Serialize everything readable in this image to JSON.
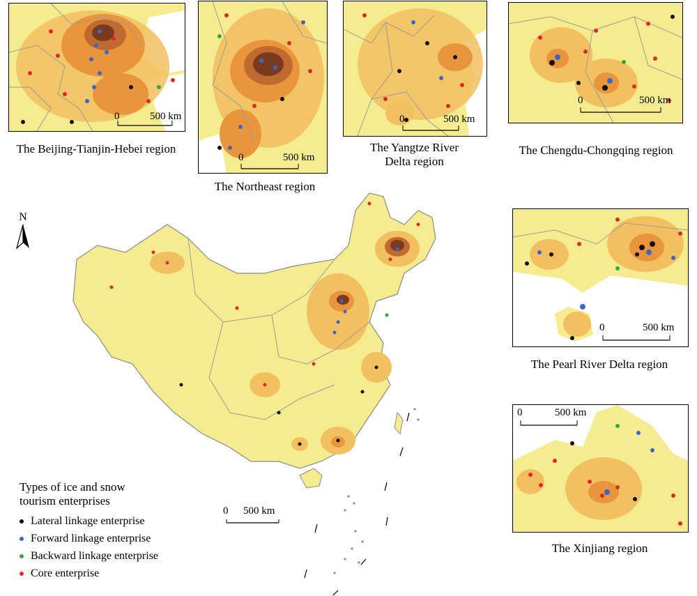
{
  "insets": {
    "bth": {
      "caption": "The Beijing-Tianjin-Hebei region"
    },
    "ne": {
      "caption": "The Northeast region"
    },
    "yrd": {
      "caption_line1": "The Yangtze River",
      "caption_line2": "Delta region"
    },
    "cc": {
      "caption": "The Chengdu-Chongqing region"
    },
    "prd": {
      "caption": "The Pearl River Delta region"
    },
    "xj": {
      "caption": "The Xinjiang region"
    }
  },
  "scale_bar": {
    "zero": "0",
    "distance": "500 km"
  },
  "north_arrow": {
    "label": "N"
  },
  "legend": {
    "title_line1": "Types of ice and snow",
    "title_line2": "tourism enterprises",
    "items": [
      {
        "label": "Lateral linkage enterprise",
        "color": "#111111"
      },
      {
        "label": "Forward linkage enterprise",
        "color": "#3b66c9"
      },
      {
        "label": "Backward linkage enterprise",
        "color": "#3aa63a"
      },
      {
        "label": "Core enterprise",
        "color": "#e02828"
      }
    ]
  },
  "colors": {
    "land": "#f5ec90",
    "density_low": "#f2c060",
    "density_mid": "#e8953e",
    "density_high": "#c06a30",
    "density_peak": "#7a3a1e",
    "sea": "#ffffff",
    "boundary": "#9a9a9a"
  }
}
